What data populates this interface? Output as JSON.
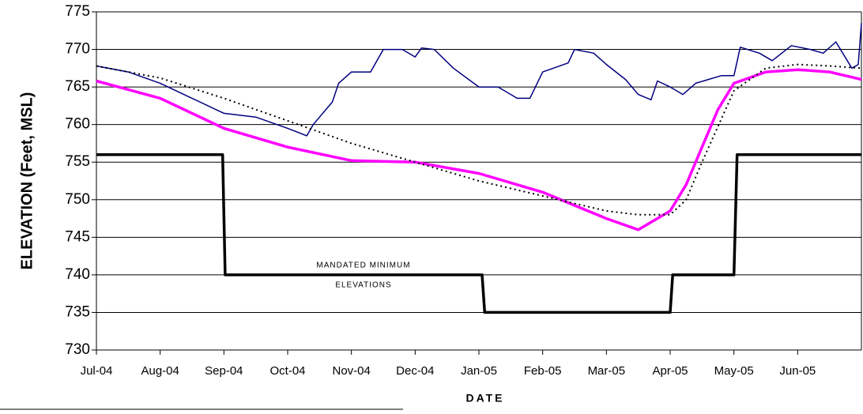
{
  "chart_data": {
    "type": "line",
    "xlabel": "DATE",
    "ylabel": "ELEVATION (Feet, MSL)",
    "annotations": [
      "MANDATED MINIMUM",
      "ELEVATIONS"
    ],
    "xlim": [
      0,
      12
    ],
    "xticks": [
      {
        "value": 0,
        "label": "Jul-04"
      },
      {
        "value": 1,
        "label": "Aug-04"
      },
      {
        "value": 2,
        "label": "Sep-04"
      },
      {
        "value": 3,
        "label": "Oct-04"
      },
      {
        "value": 4,
        "label": "Nov-04"
      },
      {
        "value": 5,
        "label": "Dec-04"
      },
      {
        "value": 6,
        "label": "Jan-05"
      },
      {
        "value": 7,
        "label": "Feb-05"
      },
      {
        "value": 8,
        "label": "Mar-05"
      },
      {
        "value": 9,
        "label": "Apr-05"
      },
      {
        "value": 10,
        "label": "May-05"
      },
      {
        "value": 11,
        "label": "Jun-05"
      }
    ],
    "ylim": [
      730,
      775
    ],
    "yticks": [
      730,
      735,
      740,
      745,
      750,
      755,
      760,
      765,
      770,
      775
    ],
    "grid": true,
    "series": [
      {
        "color": "#000080",
        "width": 1.5,
        "x": [
          0,
          0.5,
          1,
          1.5,
          2,
          2.5,
          3,
          3.3,
          3.4,
          3.7,
          3.8,
          4.0,
          4.3,
          4.5,
          4.8,
          5,
          5.1,
          5.3,
          5.6,
          6,
          6.3,
          6.6,
          6.8,
          7,
          7.4,
          7.5,
          7.8,
          8,
          8.3,
          8.5,
          8.7,
          8.8,
          9,
          9.2,
          9.4,
          9.8,
          10.0,
          10.1,
          10.4,
          10.6,
          10.9,
          11.2,
          11.4,
          11.6,
          11.85,
          11.95,
          12
        ],
        "values": [
          767.8,
          767,
          765.5,
          763.5,
          761.5,
          761,
          759.5,
          758.5,
          760,
          763,
          765.5,
          767,
          767,
          770,
          770,
          769,
          770.2,
          770,
          767.5,
          765,
          765,
          763.5,
          763.5,
          767,
          768.2,
          770,
          769.5,
          768,
          766,
          764,
          763.3,
          765.8,
          765,
          764,
          765.5,
          766.5,
          766.5,
          770.3,
          769.5,
          768.5,
          770.5,
          770,
          769.5,
          771,
          767.5,
          768,
          773.5
        ]
      },
      {
        "color": "#ff00ff",
        "width": 3.5,
        "x": [
          0,
          1,
          2,
          3,
          4,
          5,
          6,
          7,
          8,
          8.5,
          9,
          9.25,
          9.5,
          9.75,
          10,
          10.5,
          11,
          11.5,
          12
        ],
        "values": [
          765.8,
          763.5,
          759.5,
          757,
          755.2,
          755,
          753.5,
          751,
          747.5,
          746,
          748.5,
          752,
          757,
          762,
          765.5,
          767,
          767.3,
          767,
          766
        ]
      },
      {
        "color": "#000000",
        "width": 2,
        "dash": "2,4",
        "x": [
          0,
          1,
          2,
          3,
          4,
          5,
          6,
          7,
          8,
          8.5,
          9,
          9.25,
          9.5,
          10,
          10.5,
          11,
          11.5,
          12
        ],
        "values": [
          767.8,
          766.2,
          763.5,
          760.5,
          757.5,
          755,
          752.5,
          750.5,
          748.5,
          748,
          748,
          750,
          755,
          764.5,
          767.5,
          768,
          767.8,
          767.5
        ]
      },
      {
        "color": "#000000",
        "width": 3.5,
        "x": [
          0,
          1.98,
          2.02,
          6.05,
          6.09,
          9.0,
          9.04,
          10.0,
          10.05,
          12
        ],
        "values": [
          756,
          756,
          740,
          740,
          735,
          735,
          740,
          740,
          756,
          756
        ]
      }
    ]
  }
}
